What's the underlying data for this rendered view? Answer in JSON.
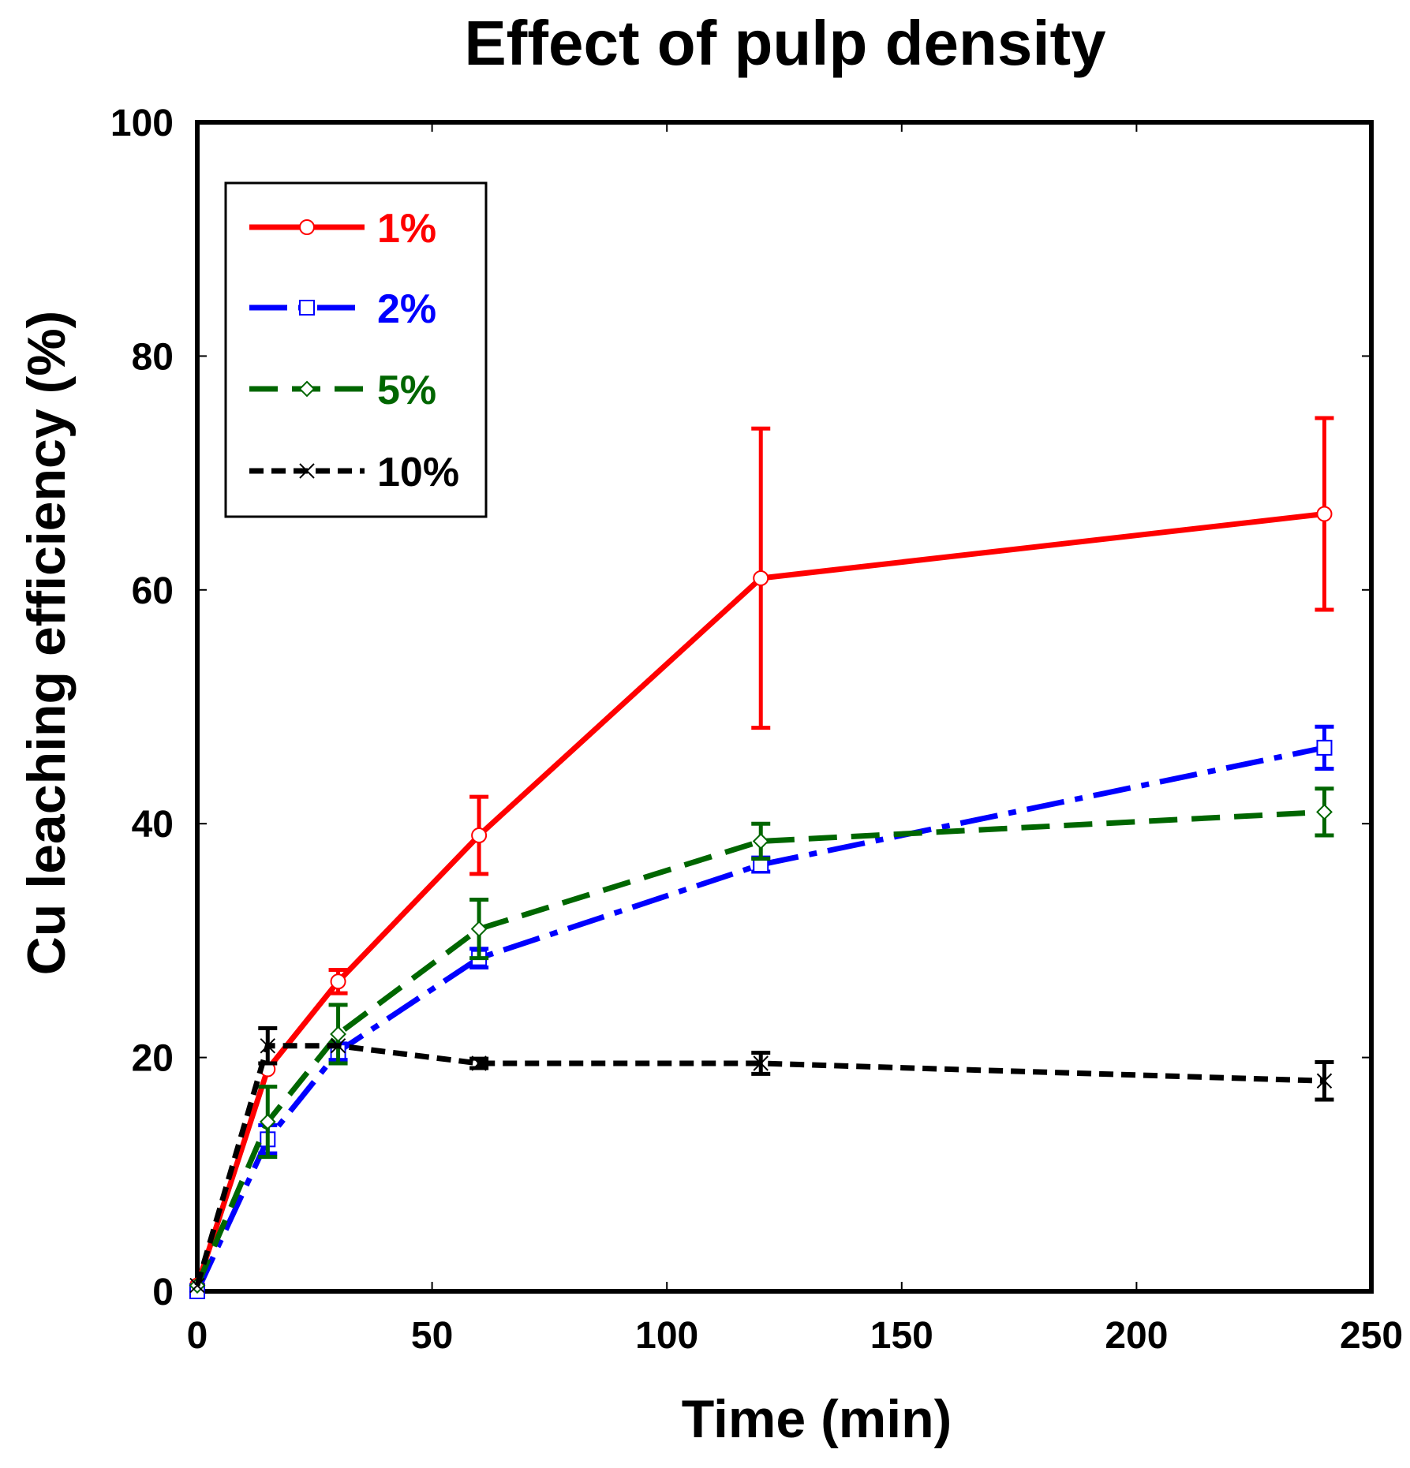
{
  "chart_data": {
    "type": "line",
    "title": "Effect of pulp density",
    "xlabel": "Time (min)",
    "ylabel": "Cu leaching efficiency (%)",
    "xlim": [
      0,
      250
    ],
    "ylim": [
      0,
      100
    ],
    "xticks": [
      0,
      50,
      100,
      150,
      200,
      250
    ],
    "yticks": [
      0,
      20,
      40,
      60,
      80,
      100
    ],
    "xtick_labels": [
      "0",
      "50",
      "100",
      "150",
      "200",
      "250"
    ],
    "ytick_labels": [
      "0",
      "20",
      "40",
      "60",
      "80",
      "100"
    ],
    "grid": false,
    "legend_position": "top-left",
    "series": [
      {
        "name": "1%",
        "color": "#ff0000",
        "marker": "circle",
        "line_style": "solid",
        "x": [
          0,
          15,
          30,
          60,
          120,
          240
        ],
        "y": [
          0.5,
          19,
          26.5,
          39,
          61,
          66.5
        ],
        "err": [
          0,
          0,
          1,
          3.3,
          12.8,
          8.2
        ]
      },
      {
        "name": "2%",
        "color": "#0000ff",
        "marker": "square",
        "line_style": "dash-dot",
        "x": [
          0,
          15,
          30,
          60,
          120,
          240
        ],
        "y": [
          0,
          13,
          20.5,
          28.5,
          36.5,
          46.5
        ],
        "err": [
          0,
          1.2,
          0.7,
          0.8,
          0.6,
          1.8
        ]
      },
      {
        "name": "5%",
        "color": "#006600",
        "marker": "diamond",
        "line_style": "dashed",
        "x": [
          0,
          15,
          30,
          60,
          120,
          240
        ],
        "y": [
          0.5,
          14.5,
          22,
          31,
          38.5,
          41
        ],
        "err": [
          0,
          3,
          2.5,
          2.5,
          1.5,
          2
        ]
      },
      {
        "name": "10%",
        "color": "#000000",
        "marker": "x",
        "line_style": "short-dash",
        "x": [
          0,
          15,
          30,
          60,
          120,
          240
        ],
        "y": [
          0.5,
          21,
          21,
          19.5,
          19.5,
          18
        ],
        "err": [
          0,
          1.5,
          0,
          0.4,
          0.9,
          1.6
        ]
      }
    ]
  }
}
